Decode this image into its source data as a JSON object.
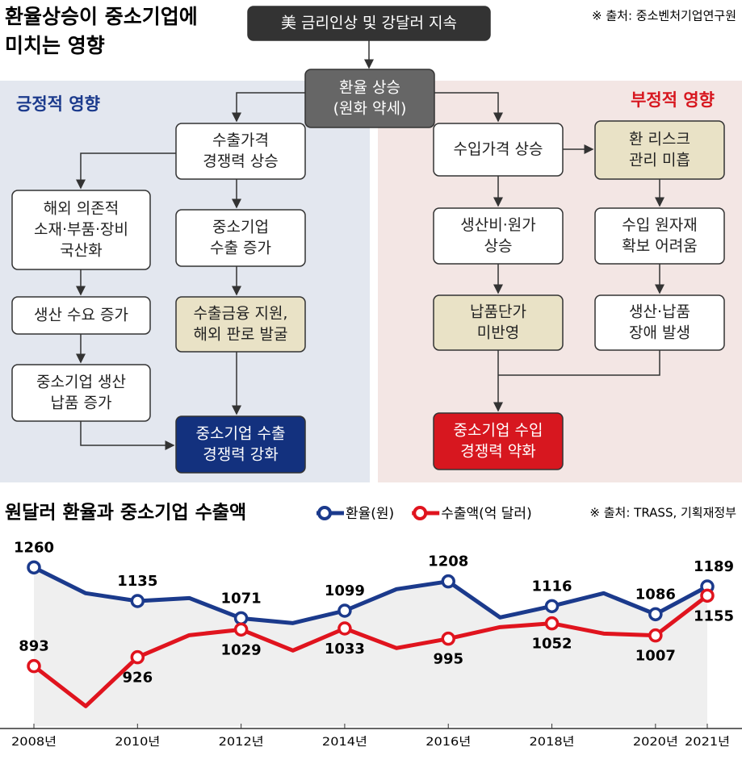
{
  "header": {
    "title": [
      "환율상승이 중소기업에",
      "미치는 영향"
    ],
    "source": "※ 출처: 중소벤처기업연구원"
  },
  "diagram": {
    "positive_heading": "긍정적 영향",
    "negative_heading": "부정적 영향",
    "nodes": [
      {
        "label": [
          "美 금리인상 및 강달러 지속"
        ]
      },
      {
        "label": [
          "환율 상승",
          "(원화 약세)"
        ]
      },
      {
        "label": [
          "수출가격",
          "경쟁력 상승"
        ]
      },
      {
        "label": [
          "해외 의존적",
          "소재·부품·장비",
          "국산화"
        ]
      },
      {
        "label": [
          "중소기업",
          "수출 증가"
        ]
      },
      {
        "label": [
          "생산 수요 증가"
        ]
      },
      {
        "label": [
          "수출금융 지원,",
          "해외 판로 발굴"
        ]
      },
      {
        "label": [
          "중소기업 생산",
          "납품 증가"
        ]
      },
      {
        "label": [
          "중소기업 수출",
          "경쟁력 강화"
        ]
      },
      {
        "label": [
          "수입가격 상승"
        ]
      },
      {
        "label": [
          "환 리스크",
          "관리 미흡"
        ]
      },
      {
        "label": [
          "생산비·원가",
          "상승"
        ]
      },
      {
        "label": [
          "수입 원자재",
          "확보 어려움"
        ]
      },
      {
        "label": [
          "납품단가",
          "미반영"
        ]
      },
      {
        "label": [
          "생산·납품",
          "장애 발생"
        ]
      },
      {
        "label": [
          "중소기업 수입",
          "경쟁력 약화"
        ]
      }
    ]
  },
  "chart_data": {
    "type": "line",
    "title": "원달러 환율과 중소기업 수출액",
    "source": "※ 출처: TRASS, 기획재정부",
    "categories": [
      "2008년",
      null,
      "2010년",
      null,
      "2012년",
      null,
      "2014년",
      null,
      "2016년",
      null,
      "2018년",
      null,
      "2020년",
      "2021년"
    ],
    "ylim": [
      670,
      1330
    ],
    "series": [
      {
        "name": "환율(원)",
        "color": "#1b3a8c",
        "values": [
          1260,
          1164,
          1135,
          1146,
          1071,
          1053,
          1099,
          1179,
          1208,
          1074,
          1116,
          1164,
          1086,
          1189
        ],
        "value_labels": [
          "1260",
          null,
          "1135",
          null,
          "1071",
          null,
          "1099",
          null,
          "1208",
          null,
          "1116",
          null,
          "1086",
          "1189"
        ]
      },
      {
        "name": "수출액(억 달러)",
        "color": "#e0141e",
        "values": [
          893,
          744,
          926,
          1008,
          1029,
          951,
          1033,
          960,
          995,
          1038,
          1052,
          1014,
          1007,
          1155
        ],
        "value_labels": [
          "893",
          null,
          "926",
          null,
          "1029",
          null,
          "1033",
          null,
          "995",
          null,
          "1052",
          null,
          "1007",
          "1155"
        ]
      }
    ]
  }
}
